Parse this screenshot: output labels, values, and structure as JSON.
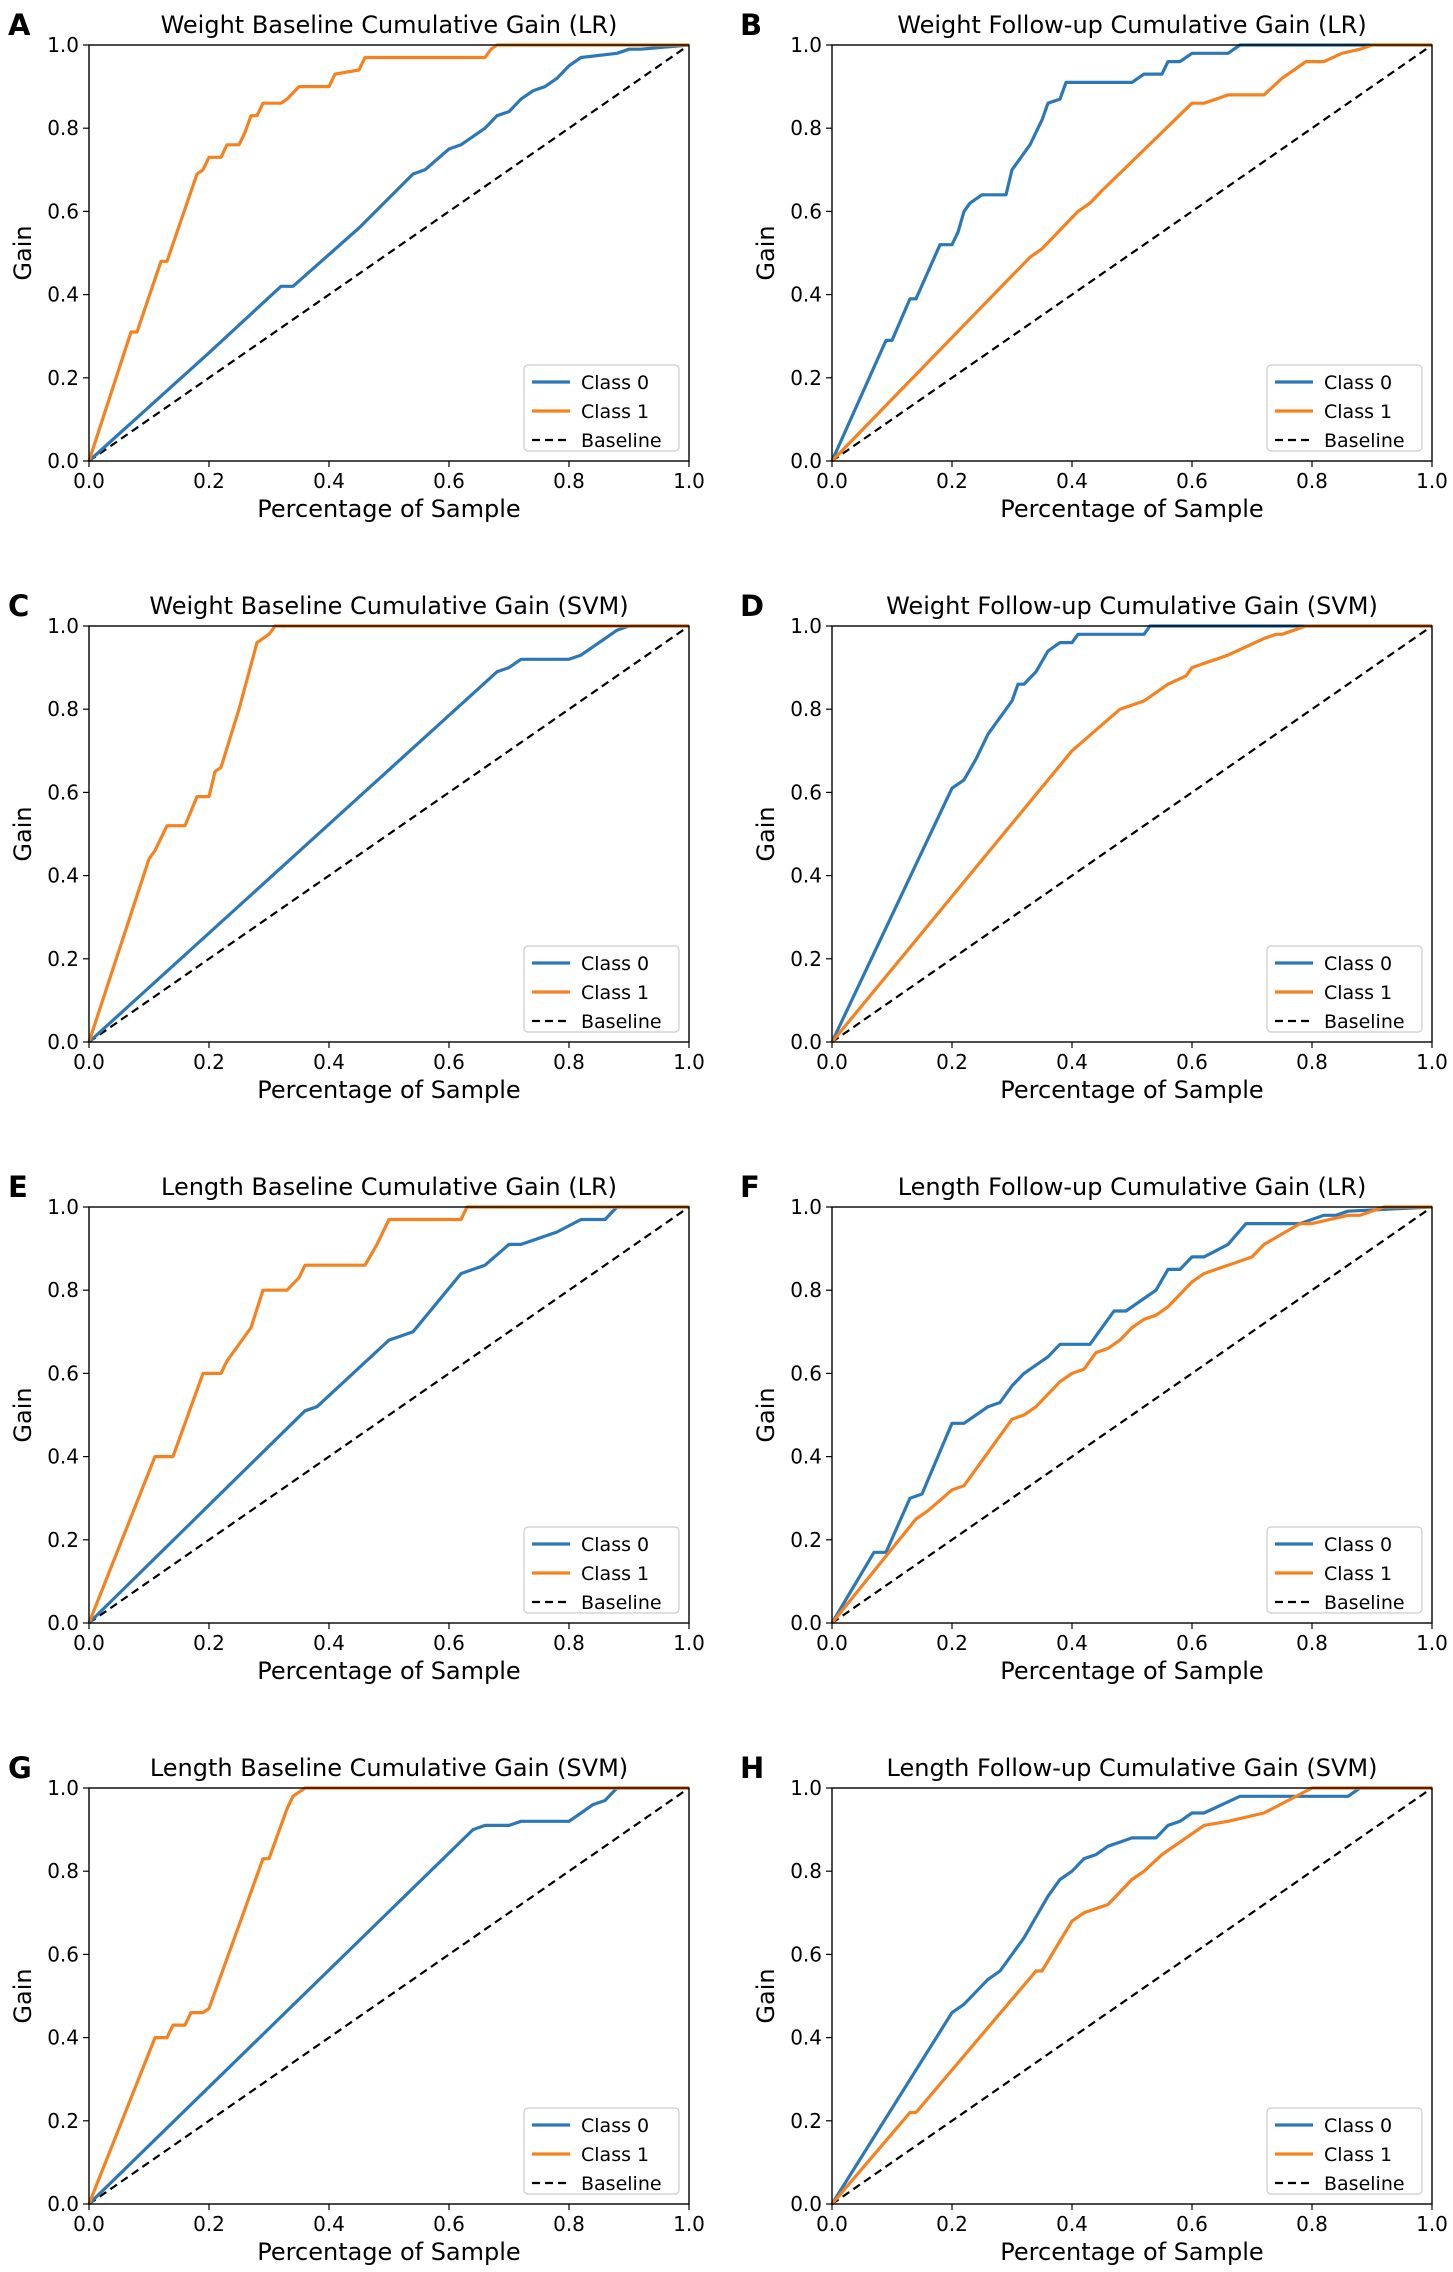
{
  "figure": {
    "colors": {
      "class0": "#2c78b6",
      "class1": "#f5821f",
      "baseline": "#000000"
    }
  },
  "chart_data": [
    {
      "panel": "A",
      "type": "line",
      "title": "Weight Baseline Cumulative Gain (LR)",
      "xlabel": "Percentage of Sample",
      "ylabel": "Gain",
      "xlim": [
        0,
        1
      ],
      "ylim": [
        0,
        1
      ],
      "xticks": [
        "0.0",
        "0.2",
        "0.4",
        "0.6",
        "0.8",
        "1.0"
      ],
      "yticks": [
        "0.0",
        "0.2",
        "0.4",
        "0.6",
        "0.8",
        "1.0"
      ],
      "legend": "lower-right",
      "series": [
        {
          "name": "Class 0",
          "x": [
            0,
            0.1,
            0.2,
            0.32,
            0.34,
            0.45,
            0.54,
            0.56,
            0.6,
            0.62,
            0.66,
            0.68,
            0.7,
            0.72,
            0.74,
            0.76,
            0.78,
            0.8,
            0.82,
            0.88,
            0.9,
            0.92,
            1.0
          ],
          "y": [
            0,
            0.13,
            0.26,
            0.42,
            0.42,
            0.56,
            0.69,
            0.7,
            0.75,
            0.76,
            0.8,
            0.83,
            0.84,
            0.87,
            0.89,
            0.9,
            0.92,
            0.95,
            0.97,
            0.98,
            0.99,
            0.99,
            1.0
          ]
        },
        {
          "name": "Class 1",
          "x": [
            0,
            0.07,
            0.08,
            0.12,
            0.13,
            0.18,
            0.19,
            0.2,
            0.22,
            0.23,
            0.25,
            0.26,
            0.27,
            0.28,
            0.29,
            0.31,
            0.32,
            0.33,
            0.35,
            0.4,
            0.41,
            0.45,
            0.46,
            0.66,
            0.67,
            0.68,
            1.0
          ],
          "y": [
            0,
            0.31,
            0.31,
            0.48,
            0.48,
            0.69,
            0.7,
            0.73,
            0.73,
            0.76,
            0.76,
            0.79,
            0.83,
            0.83,
            0.86,
            0.86,
            0.86,
            0.87,
            0.9,
            0.9,
            0.93,
            0.94,
            0.97,
            0.97,
            0.99,
            1.0,
            1.0
          ]
        },
        {
          "name": "Baseline",
          "x": [
            0,
            1
          ],
          "y": [
            0,
            1
          ]
        }
      ]
    },
    {
      "panel": "B",
      "type": "line",
      "title": "Weight Follow-up Cumulative Gain (LR)",
      "xlabel": "Percentage of Sample",
      "ylabel": "Gain",
      "xlim": [
        0,
        1
      ],
      "ylim": [
        0,
        1
      ],
      "xticks": [
        "0.0",
        "0.2",
        "0.4",
        "0.6",
        "0.8",
        "1.0"
      ],
      "yticks": [
        "0.0",
        "0.2",
        "0.4",
        "0.6",
        "0.8",
        "1.0"
      ],
      "legend": "lower-right",
      "series": [
        {
          "name": "Class 0",
          "x": [
            0,
            0.09,
            0.1,
            0.13,
            0.14,
            0.18,
            0.2,
            0.21,
            0.22,
            0.23,
            0.25,
            0.29,
            0.3,
            0.33,
            0.35,
            0.36,
            0.38,
            0.39,
            0.47,
            0.5,
            0.52,
            0.55,
            0.56,
            0.58,
            0.6,
            0.66,
            0.68,
            1.0
          ],
          "y": [
            0,
            0.29,
            0.29,
            0.39,
            0.39,
            0.52,
            0.52,
            0.55,
            0.6,
            0.62,
            0.64,
            0.64,
            0.7,
            0.76,
            0.82,
            0.86,
            0.87,
            0.91,
            0.91,
            0.91,
            0.93,
            0.93,
            0.96,
            0.96,
            0.98,
            0.98,
            1.0,
            1.0
          ]
        },
        {
          "name": "Class 1",
          "x": [
            0,
            0.33,
            0.35,
            0.37,
            0.39,
            0.41,
            0.43,
            0.45,
            0.5,
            0.6,
            0.62,
            0.64,
            0.66,
            0.68,
            0.72,
            0.75,
            0.77,
            0.79,
            0.82,
            0.85,
            0.88,
            0.9,
            1.0
          ],
          "y": [
            0,
            0.49,
            0.51,
            0.54,
            0.57,
            0.6,
            0.62,
            0.65,
            0.72,
            0.86,
            0.86,
            0.87,
            0.88,
            0.88,
            0.88,
            0.92,
            0.94,
            0.96,
            0.96,
            0.98,
            0.99,
            1.0,
            1.0
          ]
        },
        {
          "name": "Baseline",
          "x": [
            0,
            1
          ],
          "y": [
            0,
            1
          ]
        }
      ]
    },
    {
      "panel": "C",
      "type": "line",
      "title": "Weight Baseline Cumulative Gain (SVM)",
      "xlabel": "Percentage of Sample",
      "ylabel": "Gain",
      "xlim": [
        0,
        1
      ],
      "ylim": [
        0,
        1
      ],
      "xticks": [
        "0.0",
        "0.2",
        "0.4",
        "0.6",
        "0.8",
        "1.0"
      ],
      "yticks": [
        "0.0",
        "0.2",
        "0.4",
        "0.6",
        "0.8",
        "1.0"
      ],
      "legend": "lower-right",
      "series": [
        {
          "name": "Class 0",
          "x": [
            0,
            0.68,
            0.7,
            0.72,
            0.8,
            0.82,
            0.84,
            0.86,
            0.88,
            0.9,
            1.0
          ],
          "y": [
            0,
            0.89,
            0.9,
            0.92,
            0.92,
            0.93,
            0.95,
            0.97,
            0.99,
            1.0,
            1.0
          ]
        },
        {
          "name": "Class 1",
          "x": [
            0,
            0.1,
            0.11,
            0.13,
            0.16,
            0.18,
            0.2,
            0.21,
            0.22,
            0.25,
            0.28,
            0.3,
            0.31,
            1.0
          ],
          "y": [
            0,
            0.44,
            0.46,
            0.52,
            0.52,
            0.59,
            0.59,
            0.65,
            0.66,
            0.8,
            0.96,
            0.98,
            1.0,
            1.0
          ]
        },
        {
          "name": "Baseline",
          "x": [
            0,
            1
          ],
          "y": [
            0,
            1
          ]
        }
      ]
    },
    {
      "panel": "D",
      "type": "line",
      "title": "Weight Follow-up Cumulative Gain (SVM)",
      "xlabel": "Percentage of Sample",
      "ylabel": "Gain",
      "xlim": [
        0,
        1
      ],
      "ylim": [
        0,
        1
      ],
      "xticks": [
        "0.0",
        "0.2",
        "0.4",
        "0.6",
        "0.8",
        "1.0"
      ],
      "yticks": [
        "0.0",
        "0.2",
        "0.4",
        "0.6",
        "0.8",
        "1.0"
      ],
      "legend": "lower-right",
      "series": [
        {
          "name": "Class 0",
          "x": [
            0,
            0.2,
            0.22,
            0.24,
            0.26,
            0.27,
            0.3,
            0.31,
            0.32,
            0.34,
            0.36,
            0.38,
            0.4,
            0.41,
            0.52,
            0.53,
            1.0
          ],
          "y": [
            0,
            0.61,
            0.63,
            0.68,
            0.74,
            0.76,
            0.82,
            0.86,
            0.86,
            0.89,
            0.94,
            0.96,
            0.96,
            0.98,
            0.98,
            1.0,
            1.0
          ]
        },
        {
          "name": "Class 1",
          "x": [
            0,
            0.4,
            0.48,
            0.52,
            0.56,
            0.59,
            0.6,
            0.62,
            0.64,
            0.66,
            0.69,
            0.72,
            0.74,
            0.75,
            0.77,
            0.79,
            0.8,
            1.0
          ],
          "y": [
            0,
            0.7,
            0.8,
            0.82,
            0.86,
            0.88,
            0.9,
            0.91,
            0.92,
            0.93,
            0.95,
            0.97,
            0.98,
            0.98,
            0.99,
            1.0,
            1.0,
            1.0
          ]
        },
        {
          "name": "Baseline",
          "x": [
            0,
            1
          ],
          "y": [
            0,
            1
          ]
        }
      ]
    },
    {
      "panel": "E",
      "type": "line",
      "title": "Length Baseline Cumulative Gain (LR)",
      "xlabel": "Percentage of Sample",
      "ylabel": "Gain",
      "xlim": [
        0,
        1
      ],
      "ylim": [
        0,
        1
      ],
      "xticks": [
        "0.0",
        "0.2",
        "0.4",
        "0.6",
        "0.8",
        "1.0"
      ],
      "yticks": [
        "0.0",
        "0.2",
        "0.4",
        "0.6",
        "0.8",
        "1.0"
      ],
      "legend": "lower-right",
      "series": [
        {
          "name": "Class 0",
          "x": [
            0,
            0.36,
            0.38,
            0.5,
            0.52,
            0.54,
            0.62,
            0.64,
            0.66,
            0.7,
            0.72,
            0.74,
            0.76,
            0.78,
            0.82,
            0.86,
            0.88,
            1.0
          ],
          "y": [
            0,
            0.51,
            0.52,
            0.68,
            0.69,
            0.7,
            0.84,
            0.85,
            0.86,
            0.91,
            0.91,
            0.92,
            0.93,
            0.94,
            0.97,
            0.97,
            1.0,
            1.0
          ]
        },
        {
          "name": "Class 1",
          "x": [
            0,
            0.11,
            0.14,
            0.19,
            0.22,
            0.23,
            0.26,
            0.27,
            0.29,
            0.33,
            0.35,
            0.36,
            0.46,
            0.48,
            0.5,
            0.62,
            0.63,
            1.0
          ],
          "y": [
            0,
            0.4,
            0.4,
            0.6,
            0.6,
            0.63,
            0.69,
            0.71,
            0.8,
            0.8,
            0.83,
            0.86,
            0.86,
            0.91,
            0.97,
            0.97,
            1.0,
            1.0
          ]
        },
        {
          "name": "Baseline",
          "x": [
            0,
            1
          ],
          "y": [
            0,
            1
          ]
        }
      ]
    },
    {
      "panel": "F",
      "type": "line",
      "title": "Length Follow-up Cumulative Gain (LR)",
      "xlabel": "Percentage of Sample",
      "ylabel": "Gain",
      "xlim": [
        0,
        1
      ],
      "ylim": [
        0,
        1
      ],
      "xticks": [
        "0.0",
        "0.2",
        "0.4",
        "0.6",
        "0.8",
        "1.0"
      ],
      "yticks": [
        "0.0",
        "0.2",
        "0.4",
        "0.6",
        "0.8",
        "1.0"
      ],
      "legend": "lower-right",
      "series": [
        {
          "name": "Class 0",
          "x": [
            0,
            0.07,
            0.09,
            0.13,
            0.15,
            0.2,
            0.22,
            0.24,
            0.26,
            0.28,
            0.3,
            0.32,
            0.34,
            0.36,
            0.38,
            0.41,
            0.43,
            0.45,
            0.47,
            0.49,
            0.52,
            0.54,
            0.56,
            0.58,
            0.6,
            0.62,
            0.66,
            0.69,
            0.72,
            0.76,
            0.78,
            0.82,
            0.84,
            0.86,
            1.0
          ],
          "y": [
            0,
            0.17,
            0.17,
            0.3,
            0.31,
            0.48,
            0.48,
            0.5,
            0.52,
            0.53,
            0.57,
            0.6,
            0.62,
            0.64,
            0.67,
            0.67,
            0.67,
            0.71,
            0.75,
            0.75,
            0.78,
            0.8,
            0.85,
            0.85,
            0.88,
            0.88,
            0.91,
            0.96,
            0.96,
            0.96,
            0.96,
            0.98,
            0.98,
            0.99,
            1.0
          ]
        },
        {
          "name": "Class 1",
          "x": [
            0,
            0.14,
            0.16,
            0.2,
            0.22,
            0.3,
            0.32,
            0.34,
            0.36,
            0.38,
            0.4,
            0.42,
            0.44,
            0.46,
            0.48,
            0.5,
            0.52,
            0.54,
            0.56,
            0.58,
            0.6,
            0.62,
            0.64,
            0.66,
            0.68,
            0.7,
            0.72,
            0.78,
            0.8,
            0.86,
            0.88,
            0.92,
            1.0
          ],
          "y": [
            0,
            0.25,
            0.27,
            0.32,
            0.33,
            0.49,
            0.5,
            0.52,
            0.55,
            0.58,
            0.6,
            0.61,
            0.65,
            0.66,
            0.68,
            0.71,
            0.73,
            0.74,
            0.76,
            0.79,
            0.82,
            0.84,
            0.85,
            0.86,
            0.87,
            0.88,
            0.91,
            0.96,
            0.96,
            0.98,
            0.98,
            1.0,
            1.0
          ]
        },
        {
          "name": "Baseline",
          "x": [
            0,
            1
          ],
          "y": [
            0,
            1
          ]
        }
      ]
    },
    {
      "panel": "G",
      "type": "line",
      "title": "Length Baseline Cumulative Gain (SVM)",
      "xlabel": "Percentage of Sample",
      "ylabel": "Gain",
      "xlim": [
        0,
        1
      ],
      "ylim": [
        0,
        1
      ],
      "xticks": [
        "0.0",
        "0.2",
        "0.4",
        "0.6",
        "0.8",
        "1.0"
      ],
      "yticks": [
        "0.0",
        "0.2",
        "0.4",
        "0.6",
        "0.8",
        "1.0"
      ],
      "legend": "lower-right",
      "series": [
        {
          "name": "Class 0",
          "x": [
            0,
            0.64,
            0.66,
            0.7,
            0.72,
            0.8,
            0.82,
            0.84,
            0.86,
            0.88,
            1.0
          ],
          "y": [
            0,
            0.9,
            0.91,
            0.91,
            0.92,
            0.92,
            0.94,
            0.96,
            0.97,
            1.0,
            1.0
          ]
        },
        {
          "name": "Class 1",
          "x": [
            0,
            0.11,
            0.13,
            0.14,
            0.16,
            0.17,
            0.19,
            0.2,
            0.29,
            0.3,
            0.33,
            0.34,
            0.36,
            1.0
          ],
          "y": [
            0,
            0.4,
            0.4,
            0.43,
            0.43,
            0.46,
            0.46,
            0.47,
            0.83,
            0.83,
            0.95,
            0.98,
            1.0,
            1.0
          ]
        },
        {
          "name": "Baseline",
          "x": [
            0,
            1
          ],
          "y": [
            0,
            1
          ]
        }
      ]
    },
    {
      "panel": "H",
      "type": "line",
      "title": "Length Follow-up Cumulative Gain (SVM)",
      "xlabel": "Percentage of Sample",
      "ylabel": "Gain",
      "xlim": [
        0,
        1
      ],
      "ylim": [
        0,
        1
      ],
      "xticks": [
        "0.0",
        "0.2",
        "0.4",
        "0.6",
        "0.8",
        "1.0"
      ],
      "yticks": [
        "0.0",
        "0.2",
        "0.4",
        "0.6",
        "0.8",
        "1.0"
      ],
      "legend": "lower-right",
      "series": [
        {
          "name": "Class 0",
          "x": [
            0,
            0.2,
            0.22,
            0.24,
            0.26,
            0.28,
            0.3,
            0.32,
            0.34,
            0.36,
            0.38,
            0.4,
            0.42,
            0.44,
            0.46,
            0.48,
            0.5,
            0.54,
            0.56,
            0.58,
            0.6,
            0.62,
            0.68,
            0.72,
            0.86,
            0.88,
            1.0
          ],
          "y": [
            0,
            0.46,
            0.48,
            0.51,
            0.54,
            0.56,
            0.6,
            0.64,
            0.69,
            0.74,
            0.78,
            0.8,
            0.83,
            0.84,
            0.86,
            0.87,
            0.88,
            0.88,
            0.91,
            0.92,
            0.94,
            0.94,
            0.98,
            0.98,
            0.98,
            1.0,
            1.0
          ]
        },
        {
          "name": "Class 1",
          "x": [
            0,
            0.13,
            0.14,
            0.34,
            0.35,
            0.4,
            0.42,
            0.44,
            0.46,
            0.5,
            0.52,
            0.55,
            0.58,
            0.6,
            0.62,
            0.66,
            0.72,
            0.76,
            0.8,
            1.0
          ],
          "y": [
            0,
            0.22,
            0.22,
            0.56,
            0.56,
            0.68,
            0.7,
            0.71,
            0.72,
            0.78,
            0.8,
            0.84,
            0.87,
            0.89,
            0.91,
            0.92,
            0.94,
            0.97,
            1.0,
            1.0
          ]
        },
        {
          "name": "Baseline",
          "x": [
            0,
            1
          ],
          "y": [
            0,
            1
          ]
        }
      ]
    }
  ]
}
